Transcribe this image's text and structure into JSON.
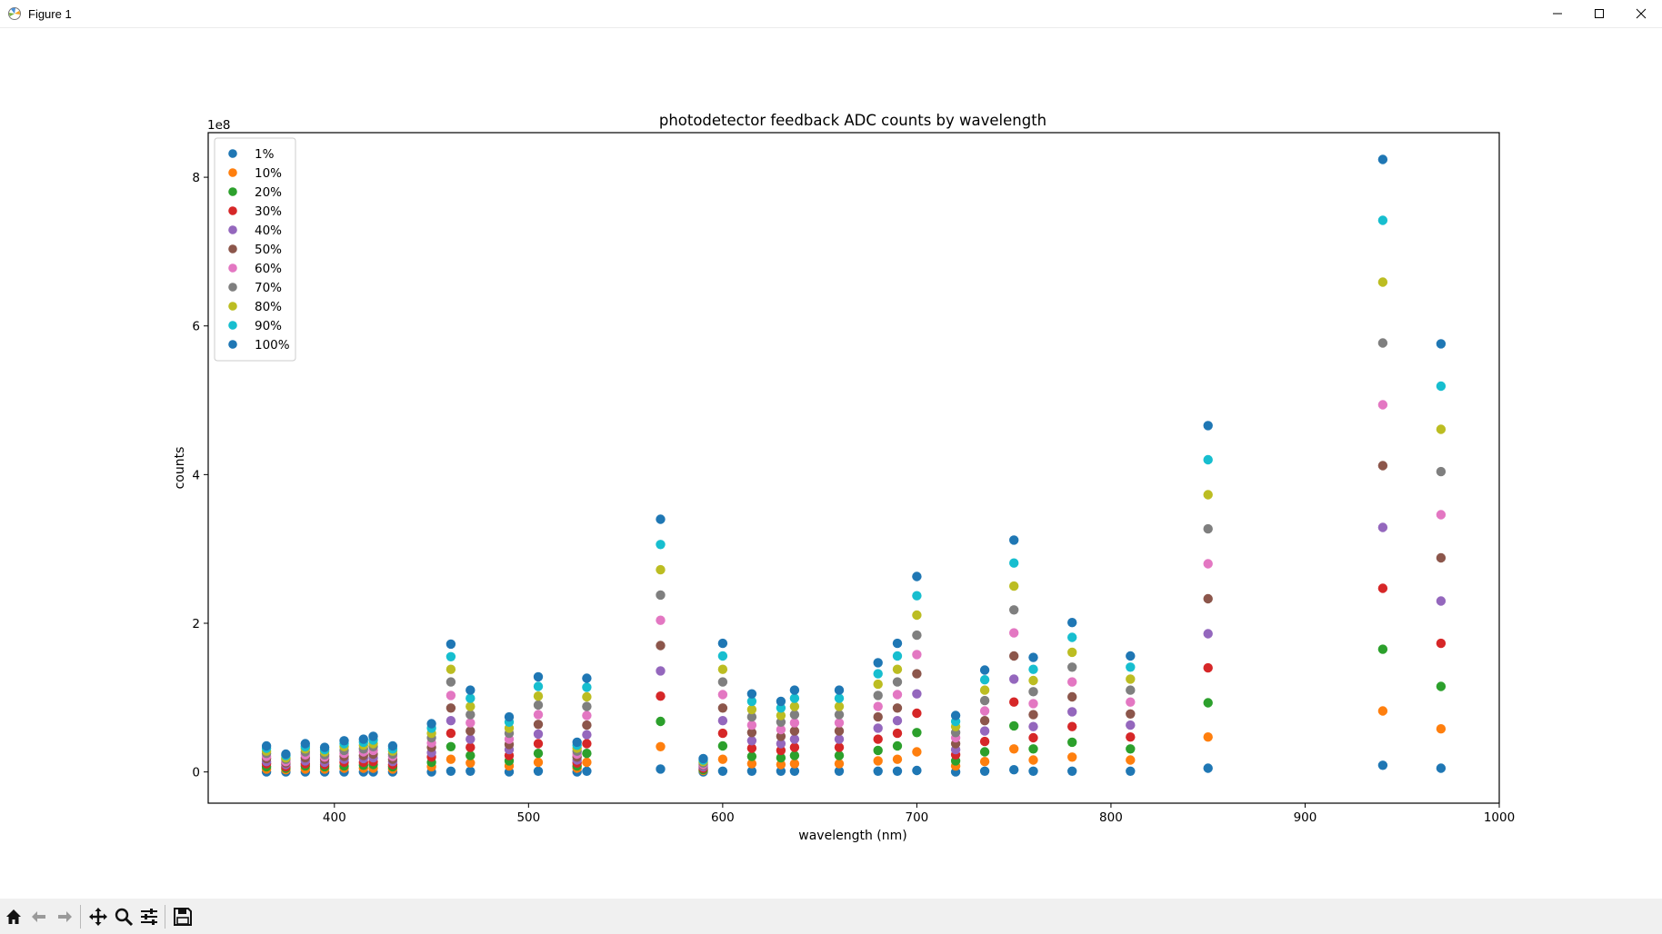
{
  "window": {
    "title": "Figure 1",
    "controls": [
      "minimize",
      "maximize",
      "close"
    ]
  },
  "toolbar": {
    "icons": [
      "home-icon",
      "back-icon",
      "forward-icon",
      "pan-icon",
      "zoom-icon",
      "configure-subplots-icon",
      "save-icon"
    ]
  },
  "chart_data": {
    "type": "scatter",
    "title": "photodetector feedback ADC counts by wavelength",
    "xlabel": "wavelength (nm)",
    "ylabel": "counts",
    "y_multiplier": "1e8",
    "xlim": [
      335,
      1000
    ],
    "ylim": [
      -0.42,
      8.6
    ],
    "x_ticks": [
      400,
      500,
      600,
      700,
      800,
      900,
      1000
    ],
    "y_ticks": [
      0,
      2,
      4,
      6,
      8
    ],
    "grid": false,
    "legend_position": "upper-left",
    "x": [
      365,
      375,
      385,
      395,
      405,
      415,
      420,
      430,
      450,
      460,
      470,
      490,
      505,
      525,
      530,
      568,
      590,
      600,
      615,
      630,
      637,
      660,
      680,
      690,
      700,
      720,
      735,
      750,
      760,
      780,
      810,
      850,
      940,
      970
    ],
    "levels": [
      1,
      10,
      20,
      30,
      40,
      50,
      60,
      70,
      80,
      90,
      100
    ],
    "series": [
      {
        "name": "1%",
        "color": "#1f77b4",
        "values": [
          0,
          0,
          0,
          0,
          0,
          0,
          0,
          0,
          0,
          0.01,
          0.01,
          0,
          0.01,
          0,
          0.01,
          0.04,
          0,
          0.01,
          0.01,
          0.01,
          0.01,
          0.01,
          0.01,
          0.01,
          0.02,
          0,
          0.01,
          0.03,
          0.01,
          0.01,
          0.01,
          0.05,
          0.09,
          0.05
        ]
      },
      {
        "name": "10%",
        "color": "#ff7f0e",
        "values": [
          0.04,
          0.03,
          0.04,
          0.04,
          0.05,
          0.05,
          0.05,
          0.04,
          0.07,
          0.17,
          0.12,
          0.08,
          0.13,
          0.05,
          0.13,
          0.34,
          0.02,
          0.17,
          0.11,
          0.1,
          0.11,
          0.11,
          0.15,
          0.17,
          0.27,
          0.08,
          0.14,
          0.31,
          0.16,
          0.2,
          0.16,
          0.47,
          0.82,
          0.58
        ]
      },
      {
        "name": "20%",
        "color": "#2ca02c",
        "values": [
          0.07,
          0.05,
          0.08,
          0.07,
          0.08,
          0.09,
          0.1,
          0.07,
          0.13,
          0.34,
          0.22,
          0.15,
          0.25,
          0.08,
          0.25,
          0.68,
          0.03,
          0.35,
          0.21,
          0.19,
          0.22,
          0.22,
          0.29,
          0.35,
          0.53,
          0.15,
          0.27,
          0.62,
          0.31,
          0.4,
          0.31,
          0.93,
          1.65,
          1.15
        ]
      },
      {
        "name": "30%",
        "color": "#d62728",
        "values": [
          0.11,
          0.07,
          0.11,
          0.1,
          0.13,
          0.13,
          0.14,
          0.1,
          0.2,
          0.52,
          0.33,
          0.22,
          0.38,
          0.12,
          0.38,
          1.02,
          0.05,
          0.52,
          0.32,
          0.29,
          0.33,
          0.33,
          0.44,
          0.52,
          0.79,
          0.23,
          0.41,
          0.94,
          0.46,
          0.61,
          0.47,
          1.4,
          2.47,
          1.73
        ]
      },
      {
        "name": "40%",
        "color": "#9467bd",
        "values": [
          0.14,
          0.1,
          0.15,
          0.13,
          0.17,
          0.18,
          0.19,
          0.14,
          0.26,
          0.69,
          0.44,
          0.3,
          0.51,
          0.16,
          0.5,
          1.36,
          0.07,
          0.69,
          0.42,
          0.38,
          0.44,
          0.44,
          0.59,
          0.69,
          1.05,
          0.3,
          0.55,
          1.25,
          0.61,
          0.81,
          0.63,
          1.86,
          3.29,
          2.3
        ]
      },
      {
        "name": "50%",
        "color": "#8c564b",
        "values": [
          0.18,
          0.12,
          0.19,
          0.17,
          0.21,
          0.22,
          0.24,
          0.17,
          0.33,
          0.86,
          0.55,
          0.37,
          0.64,
          0.2,
          0.63,
          1.7,
          0.09,
          0.86,
          0.53,
          0.48,
          0.55,
          0.55,
          0.74,
          0.86,
          1.32,
          0.38,
          0.69,
          1.56,
          0.77,
          1.01,
          0.78,
          2.33,
          4.12,
          2.88
        ]
      },
      {
        "name": "60%",
        "color": "#e377c2",
        "values": [
          0.21,
          0.14,
          0.23,
          0.2,
          0.25,
          0.27,
          0.29,
          0.21,
          0.39,
          1.03,
          0.66,
          0.44,
          0.77,
          0.24,
          0.76,
          2.04,
          0.1,
          1.04,
          0.63,
          0.57,
          0.66,
          0.66,
          0.88,
          1.04,
          1.58,
          0.46,
          0.82,
          1.87,
          0.92,
          1.21,
          0.94,
          2.8,
          4.94,
          3.46
        ]
      },
      {
        "name": "70%",
        "color": "#7f7f7f",
        "values": [
          0.25,
          0.17,
          0.27,
          0.23,
          0.29,
          0.31,
          0.34,
          0.24,
          0.46,
          1.21,
          0.77,
          0.52,
          0.9,
          0.28,
          0.88,
          2.38,
          0.12,
          1.21,
          0.74,
          0.67,
          0.77,
          0.77,
          1.03,
          1.21,
          1.84,
          0.53,
          0.96,
          2.18,
          1.08,
          1.41,
          1.1,
          3.27,
          5.77,
          4.04
        ]
      },
      {
        "name": "80%",
        "color": "#bcbd22",
        "values": [
          0.28,
          0.19,
          0.31,
          0.27,
          0.34,
          0.36,
          0.38,
          0.28,
          0.52,
          1.38,
          0.88,
          0.59,
          1.02,
          0.32,
          1.01,
          2.72,
          0.14,
          1.38,
          0.84,
          0.76,
          0.88,
          0.88,
          1.18,
          1.38,
          2.11,
          0.61,
          1.1,
          2.5,
          1.23,
          1.61,
          1.25,
          3.73,
          6.59,
          4.61
        ]
      },
      {
        "name": "90%",
        "color": "#17becf",
        "values": [
          0.32,
          0.22,
          0.34,
          0.3,
          0.38,
          0.4,
          0.43,
          0.31,
          0.59,
          1.55,
          0.99,
          0.67,
          1.15,
          0.36,
          1.14,
          3.06,
          0.16,
          1.56,
          0.95,
          0.86,
          0.99,
          0.99,
          1.32,
          1.56,
          2.37,
          0.68,
          1.24,
          2.81,
          1.38,
          1.81,
          1.41,
          4.2,
          7.42,
          5.19
        ]
      },
      {
        "name": "100%",
        "color": "#1f77b4",
        "values": [
          0.35,
          0.24,
          0.38,
          0.33,
          0.42,
          0.44,
          0.48,
          0.35,
          0.65,
          1.72,
          1.1,
          0.74,
          1.28,
          0.4,
          1.26,
          3.4,
          0.18,
          1.73,
          1.05,
          0.95,
          1.1,
          1.1,
          1.47,
          1.73,
          2.63,
          0.76,
          1.37,
          3.12,
          1.54,
          2.01,
          1.56,
          4.66,
          8.24,
          5.76
        ]
      }
    ]
  }
}
